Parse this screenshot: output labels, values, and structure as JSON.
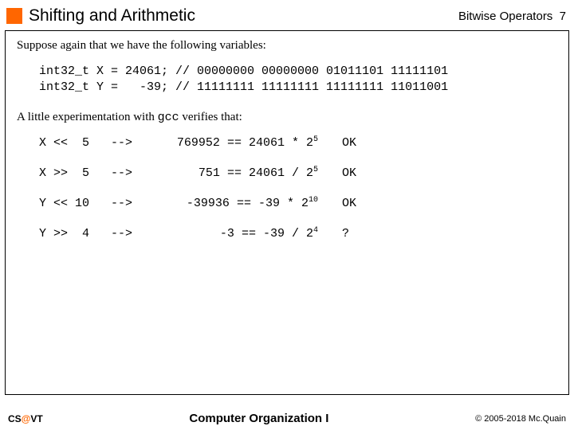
{
  "header": {
    "title": "Shifting and Arithmetic",
    "section": "Bitwise Operators",
    "page": "7"
  },
  "intro": "Suppose again that we have the following variables:",
  "code_lines": [
    "int32_t X = 24061; // 00000000 00000000 01011101 11111101",
    "int32_t Y =   -39; // 11111111 11111111 11111111 11011001"
  ],
  "verify_text_pre": "A little experimentation with ",
  "verify_code": "gcc",
  "verify_text_post": " verifies that:",
  "rows": [
    {
      "expr": "X <<  5",
      "arrow": "-->",
      "lhs": "769952",
      "eq": "==",
      "rhs_base": "24061 * 2",
      "rhs_exp": "5",
      "status": "OK"
    },
    {
      "expr": "X >>  5",
      "arrow": "-->",
      "lhs": "751",
      "eq": "==",
      "rhs_base": "24061 / 2",
      "rhs_exp": "5",
      "status": "OK"
    },
    {
      "expr": "Y << 10",
      "arrow": "-->",
      "lhs": "-39936",
      "eq": "==",
      "rhs_base": "-39 * 2",
      "rhs_exp": "10",
      "status": "OK"
    },
    {
      "expr": "Y >>  4",
      "arrow": "-->",
      "lhs": "-3",
      "eq": "==",
      "rhs_base": "-39 / 2",
      "rhs_exp": "4",
      "status": "?"
    }
  ],
  "footer": {
    "left_pre": "CS",
    "left_at": "@",
    "left_post": "VT",
    "center": "Computer Organization I",
    "right": "© 2005-2018 Mc.Quain"
  },
  "style": {
    "accent_color": "#ff6600",
    "background": "#ffffff",
    "mono_font": "Courier New",
    "serif_font": "Times New Roman"
  }
}
